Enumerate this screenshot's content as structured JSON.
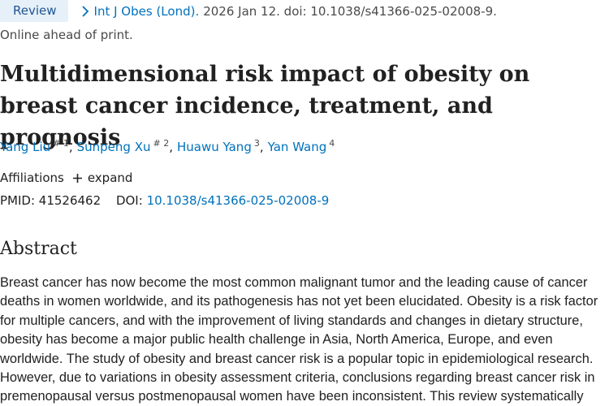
{
  "header": {
    "badge": "Review",
    "journal": "Int J Obes (Lond).",
    "citation": "2026 Jan 12. doi: 10.1038/s41366-025-02008-9.",
    "print_status": "Online ahead of print."
  },
  "article": {
    "title": "Multidimensional risk impact of obesity on breast cancer incidence, treatment, and prognosis",
    "authors": [
      {
        "name": "Yang Liu",
        "sup": "# 1"
      },
      {
        "name": "Sunpeng Xu",
        "sup": "# 2"
      },
      {
        "name": "Huawu Yang",
        "sup": "3"
      },
      {
        "name": "Yan Wang",
        "sup": "4"
      }
    ],
    "author_separator": ",",
    "affiliations_label": "Affiliations",
    "expand_label": "expand",
    "pmid_label": "PMID:",
    "pmid": "41526462",
    "doi_label": "DOI:",
    "doi": "10.1038/s41366-025-02008-9"
  },
  "abstract": {
    "heading": "Abstract",
    "text": "Breast cancer has now become the most common malignant tumor and the leading cause of cancer deaths in women worldwide, and its pathogenesis has not yet been elucidated. Obesity is a risk factor for multiple cancers, and with the improvement of living standards and changes in dietary structure, obesity has become a major public health challenge in Asia, North America, Europe, and even worldwide. The study of obesity and breast cancer risk is a popular topic in epidemiological research. However, due to variations in obesity assessment criteria, conclusions regarding breast cancer risk in premenopausal versus postmenopausal women have been inconsistent. This review systematically"
  },
  "colors": {
    "link": "#0071bc",
    "badge_bg": "#e6f0f9",
    "badge_text": "#205493",
    "text": "#212121",
    "muted": "#4a4a4a"
  }
}
